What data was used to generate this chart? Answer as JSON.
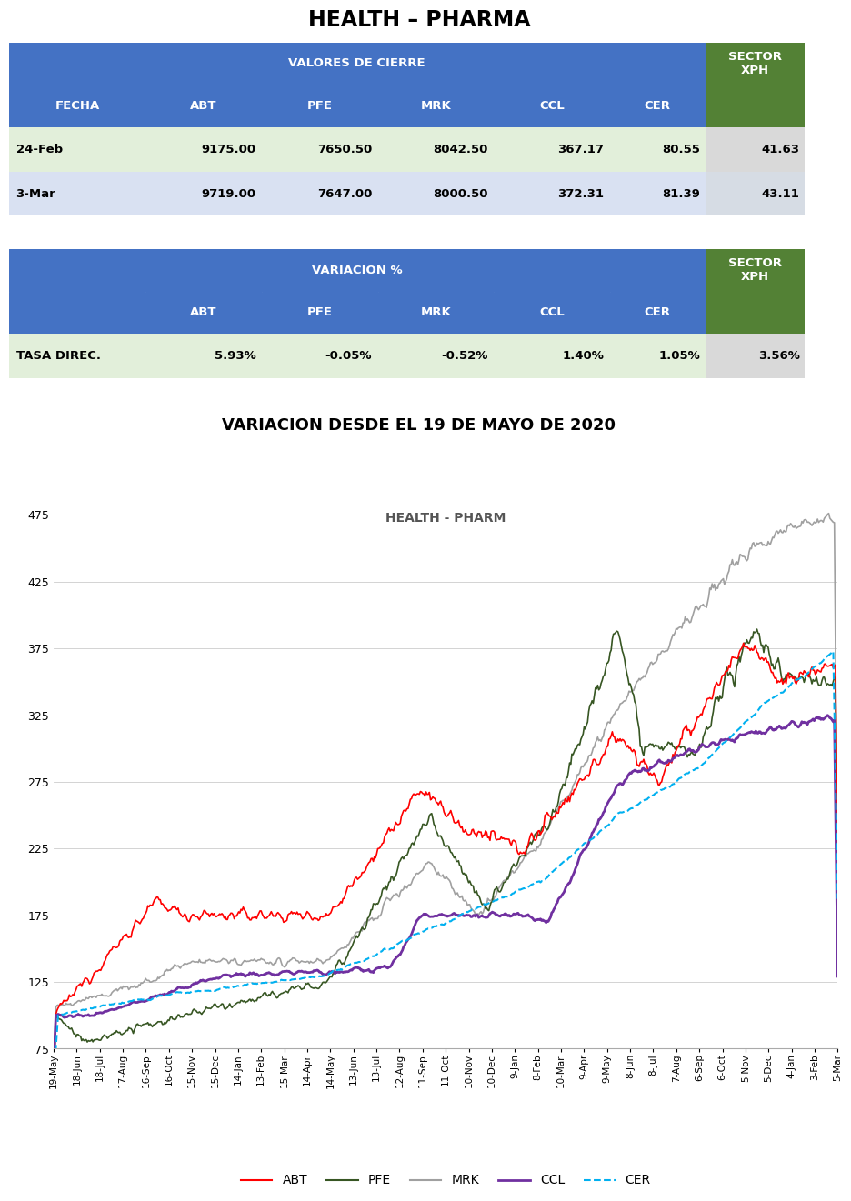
{
  "title_top": "HEALTH – PHARMA",
  "title_chart_section": "VARIACION DESDE EL 19 DE MAYO DE 2020",
  "chart_title": "HEALTH - PHARM",
  "table1_header_main": "VALORES DE CIERRE",
  "table1_cols": [
    "FECHA",
    "ABT",
    "PFE",
    "MRK",
    "CCL",
    "CER"
  ],
  "table1_sector_col": "SECTOR\nXPH",
  "table1_rows": [
    [
      "24-Feb",
      "9175.00",
      "7650.50",
      "8042.50",
      "367.17",
      "80.55",
      "41.63"
    ],
    [
      "3-Mar",
      "9719.00",
      "7647.00",
      "8000.50",
      "372.31",
      "81.39",
      "43.11"
    ]
  ],
  "table2_header_main": "VARIACION %",
  "table2_cols": [
    "",
    "ABT",
    "PFE",
    "MRK",
    "CCL",
    "CER"
  ],
  "table2_sector_col": "SECTOR\nXPH",
  "table2_rows": [
    [
      "TASA DIREC.",
      "5.93%",
      "-0.05%",
      "-0.52%",
      "1.40%",
      "1.05%",
      "3.56%"
    ]
  ],
  "blue_color": "#4472C4",
  "green_color": "#538135",
  "row_colors": [
    "#E2EFDA",
    "#D9E1F2"
  ],
  "sector_data_colors": [
    "#D9D9D9",
    "#D6DCE4"
  ],
  "white": "#FFFFFF",
  "black": "#000000",
  "x_tick_labels": [
    "19-May",
    "18-Jun",
    "18-Jul",
    "17-Aug",
    "16-Sep",
    "16-Oct",
    "15-Nov",
    "15-Dec",
    "14-Jan",
    "13-Feb",
    "15-Mar",
    "14-Apr",
    "14-May",
    "13-Jun",
    "13-Jul",
    "12-Aug",
    "11-Sep",
    "11-Oct",
    "10-Nov",
    "10-Dec",
    "9-Jan",
    "8-Feb",
    "10-Mar",
    "9-Apr",
    "9-May",
    "8-Jun",
    "8-Jul",
    "7-Aug",
    "6-Sep",
    "6-Oct",
    "5-Nov",
    "5-Dec",
    "4-Jan",
    "3-Feb",
    "5-Mar"
  ],
  "y_ticks": [
    75,
    125,
    175,
    225,
    275,
    325,
    375,
    425,
    475
  ],
  "y_min": 75,
  "y_max": 490,
  "line_colors": {
    "ABT": "#FF0000",
    "PFE": "#375623",
    "MRK": "#A0A0A0",
    "CCL": "#7030A0",
    "CER": "#00B0F0"
  }
}
